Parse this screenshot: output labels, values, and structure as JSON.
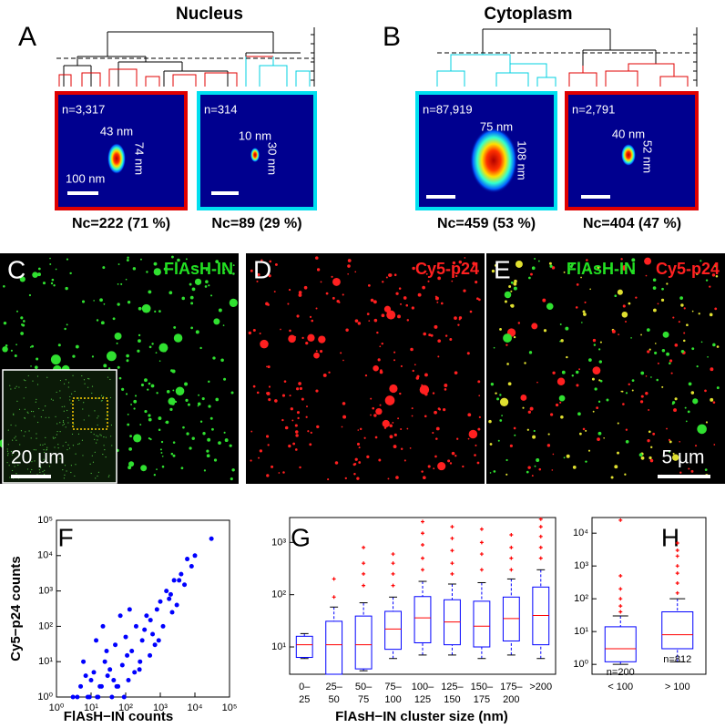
{
  "panels": {
    "A": {
      "label": "A",
      "title": "Nucleus",
      "clusters": [
        {
          "n": "n=3,317",
          "width": "43 nm",
          "height": "74 nm",
          "scale": "100 nm",
          "nc": "Nc=222 (71 %)"
        },
        {
          "n": "n=314",
          "width": "10 nm",
          "height": "30 nm",
          "nc": "Nc=89 (29 %)"
        }
      ]
    },
    "B": {
      "label": "B",
      "title": "Cytoplasm",
      "clusters": [
        {
          "n": "n=87,919",
          "width": "75 nm",
          "height": "108 nm",
          "nc": "Nc=459 (53 %)"
        },
        {
          "n": "n=2,791",
          "width": "40 nm",
          "height": "52 nm",
          "nc": "Nc=404 (47 %)"
        }
      ]
    },
    "C": {
      "label": "C",
      "channel": "FlAsH-IN",
      "scale": "20 µm"
    },
    "D": {
      "label": "D",
      "channel": "Cy5-p24"
    },
    "E": {
      "label": "E",
      "channels": [
        "FlAsH-IN",
        "Cy5-p24"
      ],
      "scale": "5 µm"
    }
  },
  "chart_data": [
    {
      "type": "scatter",
      "label": "F",
      "x_label": "FlAsH−IN counts",
      "y_label": "Cy5−p24 counts",
      "log_x": true,
      "log_y": true,
      "color": "#0000ff",
      "xlim": [
        1,
        100000
      ],
      "ylim": [
        1,
        100000
      ],
      "xticks": [
        {
          "value": 1,
          "label": "10⁰"
        },
        {
          "value": 10,
          "label": "10¹"
        },
        {
          "value": 100,
          "label": "10²"
        },
        {
          "value": 1000,
          "label": "10³"
        },
        {
          "value": 10000,
          "label": "10⁴"
        },
        {
          "value": 100000,
          "label": "10⁵"
        }
      ],
      "yticks": [
        {
          "value": 1,
          "label": "10⁰"
        },
        {
          "value": 10,
          "label": "10¹"
        },
        {
          "value": 100,
          "label": "10²"
        },
        {
          "value": 1000,
          "label": "10³"
        },
        {
          "value": 10000,
          "label": "10⁴"
        },
        {
          "value": 100000,
          "label": "10⁵"
        }
      ],
      "x": [
        3,
        5,
        8,
        10,
        12,
        15,
        20,
        25,
        30,
        40,
        50,
        60,
        80,
        100,
        120,
        150,
        200,
        250,
        300,
        400,
        500,
        600,
        800,
        1000,
        1200,
        1500,
        2000,
        2500,
        3000,
        4000,
        5000,
        6000,
        8000,
        10000,
        30000,
        6,
        9,
        14,
        18,
        22,
        35,
        45,
        70,
        90,
        110,
        180,
        350,
        700,
        1800,
        2200,
        4,
        7,
        16,
        28,
        55,
        130,
        260,
        520,
        900,
        3500
      ],
      "values": [
        1,
        2,
        1,
        3,
        5,
        1,
        2,
        10,
        4,
        1,
        30,
        2,
        8,
        50,
        3,
        20,
        100,
        6,
        40,
        200,
        15,
        60,
        300,
        500,
        100,
        1000,
        800,
        2000,
        400,
        3000,
        1500,
        8000,
        5000,
        10000,
        30000,
        10,
        1,
        40,
        2,
        100,
        6,
        3,
        200,
        1,
        15,
        5,
        80,
        30,
        600,
        250,
        1,
        4,
        1,
        20,
        2,
        300,
        10,
        150,
        40,
        2000
      ]
    },
    {
      "type": "box",
      "label": "G",
      "x_label": "FlAsH−IN cluster size (nm)",
      "log_y": true,
      "box_color": "#0000ff",
      "median_color": "#ff0000",
      "outlier_color": "#ff0000",
      "ylim": [
        3,
        3000
      ],
      "yticks": [
        {
          "value": 10,
          "label": "10¹"
        },
        {
          "value": 100,
          "label": "10²"
        },
        {
          "value": 1000,
          "label": "10³"
        }
      ],
      "categories": [
        "0–25",
        "25–50",
        "50–75",
        "75–100",
        "100–125",
        "125–150",
        "150–175",
        "175–200",
        ">200"
      ],
      "boxes": [
        {
          "low": 6,
          "q1": 6.3,
          "median": 11,
          "q3": 16,
          "high": 18,
          "outliers": []
        },
        {
          "low": 3,
          "q1": 3,
          "median": 11,
          "q3": 31,
          "high": 58,
          "outliers": [
            90,
            200
          ]
        },
        {
          "low": 3.5,
          "q1": 3.8,
          "median": 11,
          "q3": 39,
          "high": 70,
          "outliers": [
            150,
            250,
            400,
            800
          ]
        },
        {
          "low": 6,
          "q1": 9,
          "median": 22,
          "q3": 48,
          "high": 90,
          "outliers": [
            150,
            250,
            400,
            600
          ]
        },
        {
          "low": 7,
          "q1": 12,
          "median": 36,
          "q3": 92,
          "high": 180,
          "outliers": [
            300,
            500,
            900,
            1500,
            2500
          ]
        },
        {
          "low": 7,
          "q1": 11,
          "median": 30,
          "q3": 80,
          "high": 160,
          "outliers": [
            250,
            400,
            700,
            1200,
            2000
          ]
        },
        {
          "low": 6,
          "q1": 10,
          "median": 25,
          "q3": 75,
          "high": 170,
          "outliers": [
            300,
            600,
            1000,
            1800
          ]
        },
        {
          "low": 7,
          "q1": 13,
          "median": 35,
          "q3": 90,
          "high": 200,
          "outliers": [
            300,
            500,
            800,
            1400
          ]
        },
        {
          "low": 6,
          "q1": 11,
          "median": 40,
          "q3": 140,
          "high": 300,
          "outliers": [
            500,
            800,
            1300,
            2000,
            2800
          ]
        }
      ]
    },
    {
      "type": "box",
      "label": "H",
      "log_y": true,
      "box_color": "#0000ff",
      "median_color": "#ff0000",
      "outlier_color": "#ff0000",
      "ylim": [
        0.5,
        30000
      ],
      "yticks": [
        {
          "value": 1,
          "label": "10⁰"
        },
        {
          "value": 10,
          "label": "10¹"
        },
        {
          "value": 100,
          "label": "10²"
        },
        {
          "value": 1000,
          "label": "10³"
        },
        {
          "value": 10000,
          "label": "10⁴"
        }
      ],
      "categories": [
        "< 100",
        "> 100"
      ],
      "annotations": [
        "n=200",
        "n=812"
      ],
      "boxes": [
        {
          "low": 1,
          "q1": 1.2,
          "median": 3,
          "q3": 14,
          "high": 30,
          "outliers": [
            40,
            60,
            100,
            200,
            500,
            25000
          ]
        },
        {
          "low": 1.2,
          "q1": 3,
          "median": 8,
          "q3": 40,
          "high": 100,
          "outliers": [
            150,
            300,
            600,
            1000,
            2000,
            3000,
            5000
          ]
        }
      ]
    }
  ]
}
